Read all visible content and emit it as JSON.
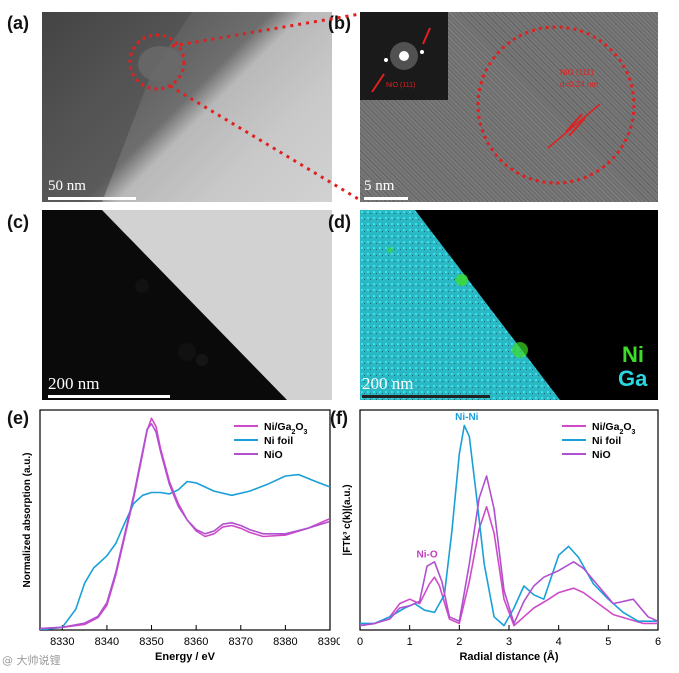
{
  "figure": {
    "panel_labels": {
      "a": "(a)",
      "b": "(b)",
      "c": "(c)",
      "d": "(d)",
      "e": "(e)",
      "f": "(f)"
    },
    "a": {
      "scale_label": "50 nm"
    },
    "b": {
      "scale_label": "5 nm",
      "fft_label": "NiO (111)",
      "particle_label": "NiO (111)",
      "d_spacing": "d=0.24 nm"
    },
    "c": {
      "scale_label": "200 nm"
    },
    "d": {
      "scale_label": "200 nm",
      "legend_ni": "Ni",
      "legend_ga": "Ga",
      "colors": {
        "ni": "#3cdc28",
        "ga": "#2ad6e0"
      }
    },
    "watermark": "@ 大帅说锂"
  },
  "chart_data": [
    {
      "panel": "e",
      "type": "line",
      "title": "",
      "xlabel": "Energy / eV",
      "ylabel": "Normalized absorption (a.u.)",
      "xlim": [
        8325,
        8390
      ],
      "ylim": [
        0,
        1.6
      ],
      "xticks": [
        8330,
        8340,
        8350,
        8360,
        8370,
        8380,
        8390
      ],
      "legend": [
        {
          "name": "Ni/Ga",
          "sub": "2",
          "mid": "O",
          "sub2": "3",
          "color": "#d04ac8"
        },
        {
          "name": "Ni foil",
          "color": "#1aa0d8"
        },
        {
          "name": "NiO",
          "color": "#b050d0"
        }
      ],
      "series": [
        {
          "name": "Ni/Ga2O3",
          "color": "#d04ac8",
          "x": [
            8325,
            8330,
            8335,
            8338,
            8340,
            8342,
            8344,
            8346,
            8348,
            8349,
            8350,
            8351,
            8352,
            8354,
            8356,
            8358,
            8360,
            8362,
            8364,
            8366,
            8368,
            8370,
            8372,
            8375,
            8380,
            8385,
            8390
          ],
          "y": [
            0.01,
            0.02,
            0.04,
            0.09,
            0.18,
            0.4,
            0.68,
            0.96,
            1.28,
            1.45,
            1.54,
            1.48,
            1.32,
            1.08,
            0.92,
            0.8,
            0.72,
            0.68,
            0.7,
            0.75,
            0.76,
            0.74,
            0.71,
            0.68,
            0.69,
            0.74,
            0.81
          ]
        },
        {
          "name": "Ni foil",
          "color": "#1aa0d8",
          "x": [
            8325,
            8330,
            8333,
            8335,
            8337,
            8340,
            8342,
            8344,
            8346,
            8348,
            8350,
            8352,
            8354,
            8356,
            8358,
            8360,
            8362,
            8364,
            8368,
            8372,
            8376,
            8380,
            8383,
            8386,
            8390
          ],
          "y": [
            0.0,
            0.02,
            0.15,
            0.34,
            0.45,
            0.54,
            0.63,
            0.78,
            0.92,
            0.98,
            1.0,
            1.0,
            0.99,
            1.02,
            1.08,
            1.07,
            1.04,
            1.01,
            0.98,
            1.01,
            1.06,
            1.12,
            1.13,
            1.09,
            1.04
          ]
        },
        {
          "name": "NiO",
          "color": "#b050d0",
          "x": [
            8325,
            8330,
            8335,
            8338,
            8340,
            8342,
            8344,
            8346,
            8348,
            8349,
            8350,
            8351,
            8352,
            8354,
            8356,
            8358,
            8360,
            8362,
            8364,
            8366,
            8368,
            8370,
            8372,
            8375,
            8380,
            8385,
            8390
          ],
          "y": [
            0.01,
            0.02,
            0.05,
            0.1,
            0.2,
            0.42,
            0.7,
            0.98,
            1.3,
            1.46,
            1.5,
            1.44,
            1.3,
            1.06,
            0.9,
            0.8,
            0.73,
            0.7,
            0.72,
            0.77,
            0.78,
            0.76,
            0.73,
            0.7,
            0.7,
            0.74,
            0.79
          ]
        }
      ]
    },
    {
      "panel": "f",
      "type": "line",
      "title": "",
      "xlabel": "Radial distance (Å)",
      "ylabel": "|FTk³ c(k)|(a.u.)",
      "xlim": [
        0,
        6
      ],
      "ylim": [
        0,
        1.0
      ],
      "xticks": [
        0,
        1,
        2,
        3,
        4,
        5,
        6
      ],
      "annotations": [
        {
          "text": "Ni-Ni",
          "x": 2.15,
          "y": 0.955,
          "color": "#1aa0d8"
        },
        {
          "text": "Ni-O",
          "x": 1.35,
          "y": 0.33,
          "color": "#c040c0"
        }
      ],
      "legend": [
        {
          "name": "Ni/Ga",
          "sub": "2",
          "mid": "O",
          "sub2": "3",
          "color": "#d04ac8"
        },
        {
          "name": "Ni foil",
          "color": "#1aa0d8"
        },
        {
          "name": "NiO",
          "color": "#b050d0"
        }
      ],
      "series": [
        {
          "name": "Ni/Ga2O3",
          "color": "#d04ac8",
          "x": [
            0,
            0.3,
            0.6,
            0.8,
            1.0,
            1.2,
            1.4,
            1.5,
            1.6,
            1.8,
            2.0,
            2.2,
            2.4,
            2.55,
            2.7,
            2.9,
            3.1,
            3.3,
            3.5,
            3.8,
            4.0,
            4.3,
            4.5,
            4.8,
            5.1,
            5.4,
            5.7,
            6.0
          ],
          "y": [
            0.02,
            0.03,
            0.06,
            0.12,
            0.14,
            0.12,
            0.21,
            0.24,
            0.2,
            0.05,
            0.03,
            0.22,
            0.46,
            0.56,
            0.44,
            0.14,
            0.02,
            0.06,
            0.1,
            0.14,
            0.17,
            0.19,
            0.17,
            0.12,
            0.07,
            0.05,
            0.03,
            0.03
          ]
        },
        {
          "name": "Ni foil",
          "color": "#1aa0d8",
          "x": [
            0,
            0.3,
            0.6,
            0.9,
            1.1,
            1.3,
            1.5,
            1.7,
            1.85,
            2.0,
            2.1,
            2.2,
            2.35,
            2.5,
            2.7,
            2.9,
            3.1,
            3.3,
            3.5,
            3.7,
            4.0,
            4.2,
            4.4,
            4.7,
            5.0,
            5.3,
            5.6,
            6.0
          ],
          "y": [
            0.03,
            0.03,
            0.06,
            0.1,
            0.12,
            0.09,
            0.08,
            0.16,
            0.45,
            0.8,
            0.93,
            0.88,
            0.6,
            0.3,
            0.06,
            0.02,
            0.1,
            0.2,
            0.16,
            0.14,
            0.34,
            0.38,
            0.33,
            0.21,
            0.14,
            0.08,
            0.04,
            0.04
          ]
        },
        {
          "name": "NiO",
          "color": "#b050d0",
          "x": [
            0,
            0.3,
            0.6,
            0.8,
            1.0,
            1.2,
            1.35,
            1.5,
            1.65,
            1.8,
            2.0,
            2.2,
            2.4,
            2.55,
            2.7,
            2.9,
            3.1,
            3.3,
            3.5,
            3.7,
            4.0,
            4.3,
            4.5,
            4.8,
            5.1,
            5.5,
            5.8,
            6.0
          ],
          "y": [
            0.02,
            0.03,
            0.05,
            0.1,
            0.11,
            0.13,
            0.29,
            0.31,
            0.22,
            0.06,
            0.04,
            0.3,
            0.6,
            0.7,
            0.55,
            0.18,
            0.03,
            0.13,
            0.2,
            0.24,
            0.27,
            0.31,
            0.28,
            0.2,
            0.12,
            0.14,
            0.06,
            0.04
          ]
        }
      ]
    }
  ]
}
